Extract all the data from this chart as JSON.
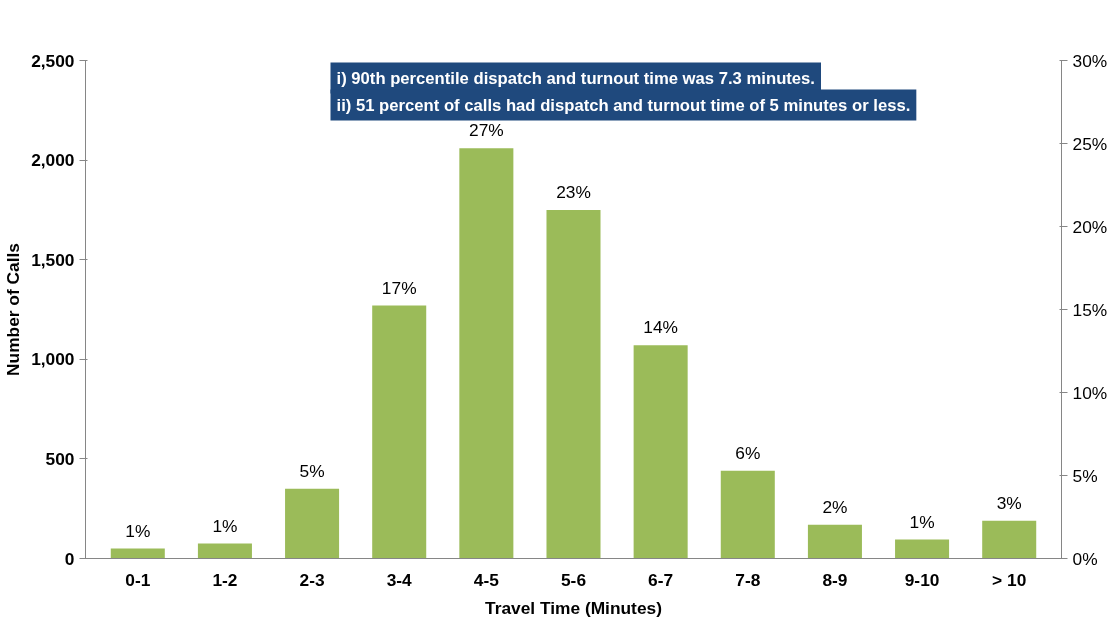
{
  "chart_data": {
    "type": "bar",
    "xlabel": "Travel Time (Minutes)",
    "ylabel": "Number of Calls",
    "categories": [
      "0-1",
      "1-2",
      "2-3",
      "3-4",
      "4-5",
      "5-6",
      "6-7",
      "7-8",
      "8-9",
      "9-10",
      "> 10"
    ],
    "values": [
      50,
      75,
      350,
      1270,
      2060,
      1750,
      1070,
      440,
      170,
      95,
      190
    ],
    "color": "#9bbb59",
    "ylim": [
      0,
      2500
    ],
    "yticks": [
      0,
      500,
      {
        "value": 1000,
        "label": "1,000"
      },
      {
        "value": 1500,
        "label": "1,500"
      },
      {
        "value": 2000,
        "label": "2,000"
      },
      {
        "value": 2500,
        "label": "2,500"
      }
    ],
    "y2lim": [
      0,
      30
    ],
    "y2ticks": [
      {
        "value": 0,
        "label": "0%"
      },
      {
        "value": 5,
        "label": "5%"
      },
      {
        "value": 10,
        "label": "10%"
      },
      {
        "value": 15,
        "label": "15%"
      },
      {
        "value": 20,
        "label": "20%"
      },
      {
        "value": 25,
        "label": "25%"
      },
      {
        "value": 30,
        "label": "30%"
      }
    ],
    "annotations": [
      "i) 90th percentile dispatch and turnout time was 7.3 minutes.",
      "ii) 51 percent of calls had dispatch and turnout time of 5 minutes or less.",
      {
        "text": "1%",
        "x": "0-1",
        "y": 50
      },
      {
        "text": "1%",
        "x": "1-2",
        "y": 75
      },
      {
        "text": "5%",
        "x": "2-3",
        "y": 350
      },
      {
        "text": "17%",
        "x": "3-4",
        "y": 1270
      },
      {
        "text": "27%",
        "x": "4-5",
        "y": 2060
      },
      {
        "text": "23%",
        "x": "5-6",
        "y": 1750
      },
      {
        "text": "14%",
        "x": "6-7",
        "y": 1070
      },
      {
        "text": "6%",
        "x": "7-8",
        "y": 440
      },
      {
        "text": "2%",
        "x": "8-9",
        "y": 170
      },
      {
        "text": "1%",
        "x": "9-10",
        "y": 95
      },
      {
        "text": "3%",
        "x": "> 10",
        "y": 190
      }
    ],
    "grid": false
  }
}
